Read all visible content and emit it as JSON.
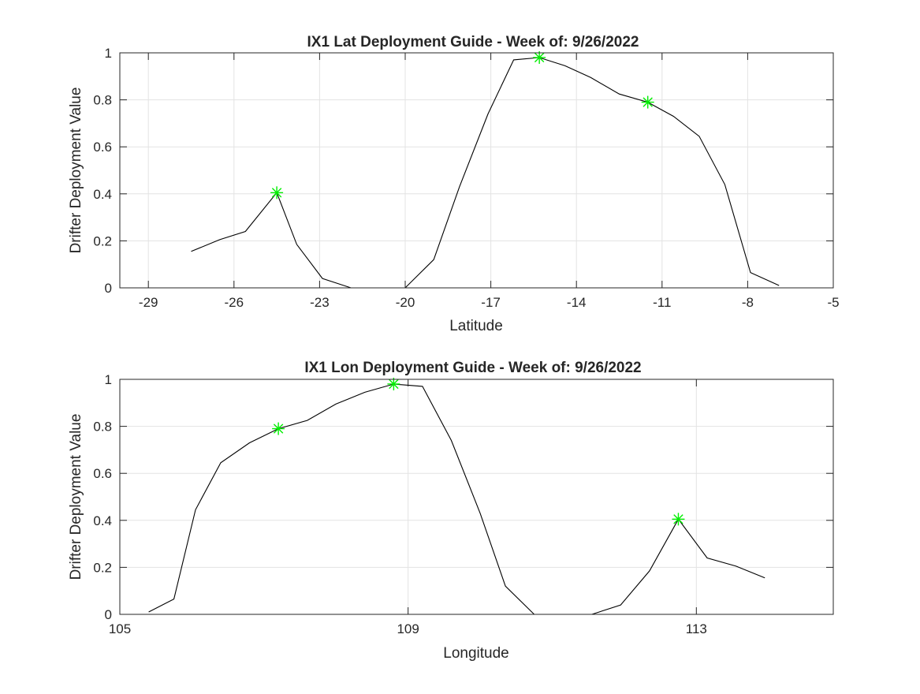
{
  "chart_data": [
    {
      "type": "line",
      "title": "IX1 Lat Deployment Guide - Week of: 9/26/2022",
      "xlabel": "Latitude",
      "ylabel": "Drifter Deployment Value",
      "xlim": [
        -30,
        -5
      ],
      "ylim": [
        0,
        1
      ],
      "xticks": [
        -29,
        -26,
        -23,
        -20,
        -17,
        -14,
        -11,
        -8,
        -5
      ],
      "yticks": [
        0,
        0.2,
        0.4,
        0.6,
        0.8,
        1
      ],
      "xtick_labels": [
        "-29",
        "-26",
        "-23",
        "-20",
        "-17",
        "-14",
        "-11",
        "-8",
        "-5"
      ],
      "ytick_labels": [
        "0",
        "0.2",
        "0.4",
        "0.6",
        "0.8",
        "1"
      ],
      "grid": true,
      "series": [
        {
          "color": "#000000",
          "x": [
            -27.5,
            -26.5,
            -25.6,
            -24.5,
            -23.8,
            -22.9,
            -21.9,
            -20.9,
            -20.0,
            -19.0,
            -18.1,
            -17.1,
            -16.2,
            -15.3,
            -14.4,
            -13.5,
            -12.5,
            -11.5,
            -10.6,
            -9.7,
            -8.8,
            -7.9,
            -6.9
          ],
          "y": [
            0.155,
            0.205,
            0.24,
            0.405,
            0.185,
            0.04,
            0.0,
            0.0,
            0.0,
            0.12,
            0.43,
            0.74,
            0.97,
            0.98,
            0.945,
            0.895,
            0.825,
            0.79,
            0.73,
            0.645,
            0.44,
            0.065,
            0.01
          ]
        }
      ],
      "markers": {
        "color": "#00ee00",
        "symbol": "asterisk",
        "points": [
          {
            "x": -24.5,
            "y": 0.405
          },
          {
            "x": -15.3,
            "y": 0.98
          },
          {
            "x": -11.5,
            "y": 0.79
          }
        ]
      }
    },
    {
      "type": "line",
      "title": "IX1 Lon Deployment Guide - Week of: 9/26/2022",
      "xlabel": "Longitude",
      "ylabel": "Drifter Deployment Value",
      "xlim": [
        105,
        114.9
      ],
      "ylim": [
        0,
        1
      ],
      "xticks": [
        105,
        109,
        113
      ],
      "yticks": [
        0,
        0.2,
        0.4,
        0.6,
        0.8,
        1
      ],
      "xtick_labels": [
        "105",
        "109",
        "113"
      ],
      "ytick_labels": [
        "0",
        "0.2",
        "0.4",
        "0.6",
        "0.8",
        "1"
      ],
      "grid": true,
      "series": [
        {
          "color": "#000000",
          "x": [
            105.4,
            105.75,
            106.05,
            106.4,
            106.8,
            107.2,
            107.6,
            108.0,
            108.4,
            108.8,
            109.2,
            109.6,
            110.0,
            110.35,
            110.75,
            111.15,
            111.55,
            111.95,
            112.35,
            112.75,
            113.15,
            113.55,
            113.95
          ],
          "y": [
            0.01,
            0.065,
            0.445,
            0.645,
            0.73,
            0.79,
            0.825,
            0.895,
            0.945,
            0.98,
            0.97,
            0.74,
            0.43,
            0.12,
            0.0,
            0.0,
            0.0,
            0.04,
            0.185,
            0.405,
            0.24,
            0.205,
            0.155
          ]
        }
      ],
      "markers": {
        "color": "#00ee00",
        "symbol": "asterisk",
        "points": [
          {
            "x": 107.2,
            "y": 0.79
          },
          {
            "x": 108.8,
            "y": 0.98
          },
          {
            "x": 112.75,
            "y": 0.405
          }
        ]
      }
    }
  ]
}
